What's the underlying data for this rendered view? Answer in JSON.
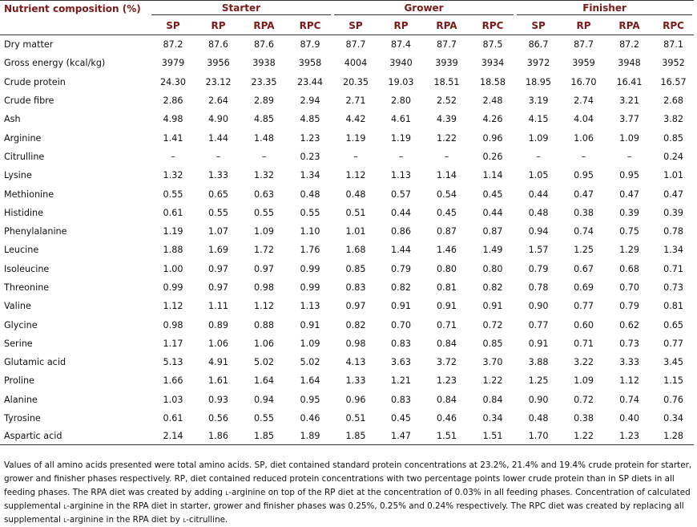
{
  "header": {
    "first_col": "Nutrient composition (%)",
    "groups": [
      "Starter",
      "Grower",
      "Finisher"
    ],
    "subcols": [
      "SP",
      "RP",
      "RPA",
      "RPC"
    ]
  },
  "rows": [
    {
      "label": "Dry matter",
      "values": [
        "87.2",
        "87.6",
        "87.6",
        "87.9",
        "87.7",
        "87.4",
        "87.7",
        "87.5",
        "86.7",
        "87.7",
        "87.2",
        "87.1"
      ]
    },
    {
      "label": "Gross energy (kcal/kg)",
      "values": [
        "3979",
        "3956",
        "3938",
        "3958",
        "4004",
        "3940",
        "3939",
        "3934",
        "3972",
        "3959",
        "3948",
        "3952"
      ]
    },
    {
      "label": "Crude protein",
      "values": [
        "24.30",
        "23.12",
        "23.35",
        "23.44",
        "20.35",
        "19.03",
        "18.51",
        "18.58",
        "18.95",
        "16.70",
        "16.41",
        "16.57"
      ]
    },
    {
      "label": "Crude fibre",
      "values": [
        "2.86",
        "2.64",
        "2.89",
        "2.94",
        "2.71",
        "2.80",
        "2.52",
        "2.48",
        "3.19",
        "2.74",
        "3.21",
        "2.68"
      ]
    },
    {
      "label": "Ash",
      "values": [
        "4.98",
        "4.90",
        "4.85",
        "4.85",
        "4.42",
        "4.61",
        "4.39",
        "4.26",
        "4.15",
        "4.04",
        "3.77",
        "3.82"
      ]
    },
    {
      "label": "Arginine",
      "values": [
        "1.41",
        "1.44",
        "1.48",
        "1.23",
        "1.19",
        "1.19",
        "1.22",
        "0.96",
        "1.09",
        "1.06",
        "1.09",
        "0.85"
      ]
    },
    {
      "label": "Citrulline",
      "values": [
        "–",
        "–",
        "–",
        "0.23",
        "–",
        "–",
        "–",
        "0.26",
        "–",
        "–",
        "–",
        "0.24"
      ]
    },
    {
      "label": "Lysine",
      "values": [
        "1.32",
        "1.33",
        "1.32",
        "1.34",
        "1.12",
        "1.13",
        "1.14",
        "1.14",
        "1.05",
        "0.95",
        "0.95",
        "1.01"
      ]
    },
    {
      "label": "Methionine",
      "values": [
        "0.55",
        "0.65",
        "0.63",
        "0.48",
        "0.48",
        "0.57",
        "0.54",
        "0.45",
        "0.44",
        "0.47",
        "0.47",
        "0.47"
      ]
    },
    {
      "label": "Histidine",
      "values": [
        "0.61",
        "0.55",
        "0.55",
        "0.55",
        "0.51",
        "0.44",
        "0.45",
        "0.44",
        "0.48",
        "0.38",
        "0.39",
        "0.39"
      ]
    },
    {
      "label": "Phenylalanine",
      "values": [
        "1.19",
        "1.07",
        "1.09",
        "1.10",
        "1.01",
        "0.86",
        "0.87",
        "0.87",
        "0.94",
        "0.74",
        "0.75",
        "0.78"
      ]
    },
    {
      "label": "Leucine",
      "values": [
        "1.88",
        "1.69",
        "1.72",
        "1.76",
        "1.68",
        "1.44",
        "1.46",
        "1.49",
        "1.57",
        "1.25",
        "1.29",
        "1.34"
      ]
    },
    {
      "label": "Isoleucine",
      "values": [
        "1.00",
        "0.97",
        "0.97",
        "0.99",
        "0.85",
        "0.79",
        "0.80",
        "0.80",
        "0.79",
        "0.67",
        "0.68",
        "0.71"
      ]
    },
    {
      "label": "Threonine",
      "values": [
        "0.99",
        "0.97",
        "0.98",
        "0.99",
        "0.83",
        "0.82",
        "0.81",
        "0.82",
        "0.78",
        "0.69",
        "0.70",
        "0.73"
      ]
    },
    {
      "label": "Valine",
      "values": [
        "1.12",
        "1.11",
        "1.12",
        "1.13",
        "0.97",
        "0.91",
        "0.91",
        "0.91",
        "0.90",
        "0.77",
        "0.79",
        "0.81"
      ]
    },
    {
      "label": "Glycine",
      "values": [
        "0.98",
        "0.89",
        "0.88",
        "0.91",
        "0.82",
        "0.70",
        "0.71",
        "0.72",
        "0.77",
        "0.60",
        "0.62",
        "0.65"
      ]
    },
    {
      "label": "Serine",
      "values": [
        "1.17",
        "1.06",
        "1.06",
        "1.09",
        "0.98",
        "0.83",
        "0.84",
        "0.85",
        "0.91",
        "0.71",
        "0.73",
        "0.77"
      ]
    },
    {
      "label": "Glutamic acid",
      "values": [
        "5.13",
        "4.91",
        "5.02",
        "5.02",
        "4.13",
        "3.63",
        "3.72",
        "3.70",
        "3.88",
        "3.22",
        "3.33",
        "3.45"
      ]
    },
    {
      "label": "Proline",
      "values": [
        "1.66",
        "1.61",
        "1.64",
        "1.64",
        "1.33",
        "1.21",
        "1.23",
        "1.22",
        "1.25",
        "1.09",
        "1.12",
        "1.15"
      ]
    },
    {
      "label": "Alanine",
      "values": [
        "1.03",
        "0.93",
        "0.94",
        "0.95",
        "0.96",
        "0.83",
        "0.84",
        "0.84",
        "0.90",
        "0.72",
        "0.74",
        "0.76"
      ]
    },
    {
      "label": "Tyrosine",
      "values": [
        "0.61",
        "0.56",
        "0.55",
        "0.46",
        "0.51",
        "0.45",
        "0.46",
        "0.34",
        "0.48",
        "0.38",
        "0.40",
        "0.34"
      ]
    },
    {
      "label": "Aspartic acid",
      "values": [
        "2.14",
        "1.86",
        "1.85",
        "1.89",
        "1.85",
        "1.47",
        "1.51",
        "1.51",
        "1.70",
        "1.22",
        "1.23",
        "1.28"
      ]
    }
  ],
  "footnote": {
    "p1": "Values of all amino acids presented were total amino acids. SP, diet contained standard protein concentrations at 23.2%, 21.4% and 19.4% crude protein for starter, grower and finisher phases respectively. RP, diet contained reduced protein concentrations with two percentage points lower crude protein than in SP diets in all feeding phases. The RPA diet was created by adding ",
    "sc1": "l",
    "p2": "-arginine on top of the RP diet at the concentration of 0.03% in all feeding phases. Concentration of calculated supplemental ",
    "sc2": "l",
    "p3": "-arginine in the RPA diet in starter, grower and finisher phases was 0.25%, 0.25% and 0.24% respectively. The RPC diet was created by replacing all supplemental ",
    "sc3": "l",
    "p4": "-arginine in the RPA diet by ",
    "sc4": "l",
    "p5": "-citrulline."
  }
}
